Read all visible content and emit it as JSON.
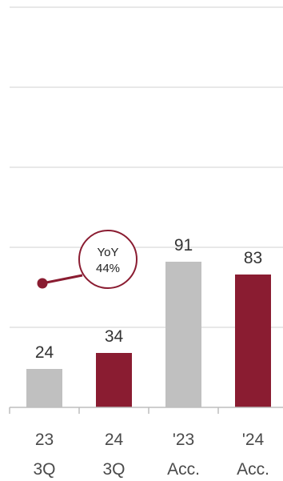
{
  "chart_data": {
    "type": "bar",
    "categories": [
      {
        "line1": "23",
        "line2": "3Q"
      },
      {
        "line1": "24",
        "line2": "3Q"
      },
      {
        "line1": "'23",
        "line2": "Acc."
      },
      {
        "line1": "'24",
        "line2": "Acc."
      }
    ],
    "values": [
      24,
      34,
      91,
      83
    ],
    "value_labels": [
      "24",
      "34",
      "91",
      "83"
    ],
    "bar_colors": [
      "#c0c0c0",
      "#8a1c31",
      "#c0c0c0",
      "#8a1c31"
    ],
    "ylim": [
      0,
      250
    ],
    "grid": true,
    "callout": {
      "line1": "YoY",
      "line2": "44%",
      "color": "#8a1c31"
    }
  },
  "colors": {
    "grid": "#e0e0e0",
    "axis": "#bdbdbd",
    "accent": "#8a1c31",
    "muted": "#c0c0c0"
  }
}
